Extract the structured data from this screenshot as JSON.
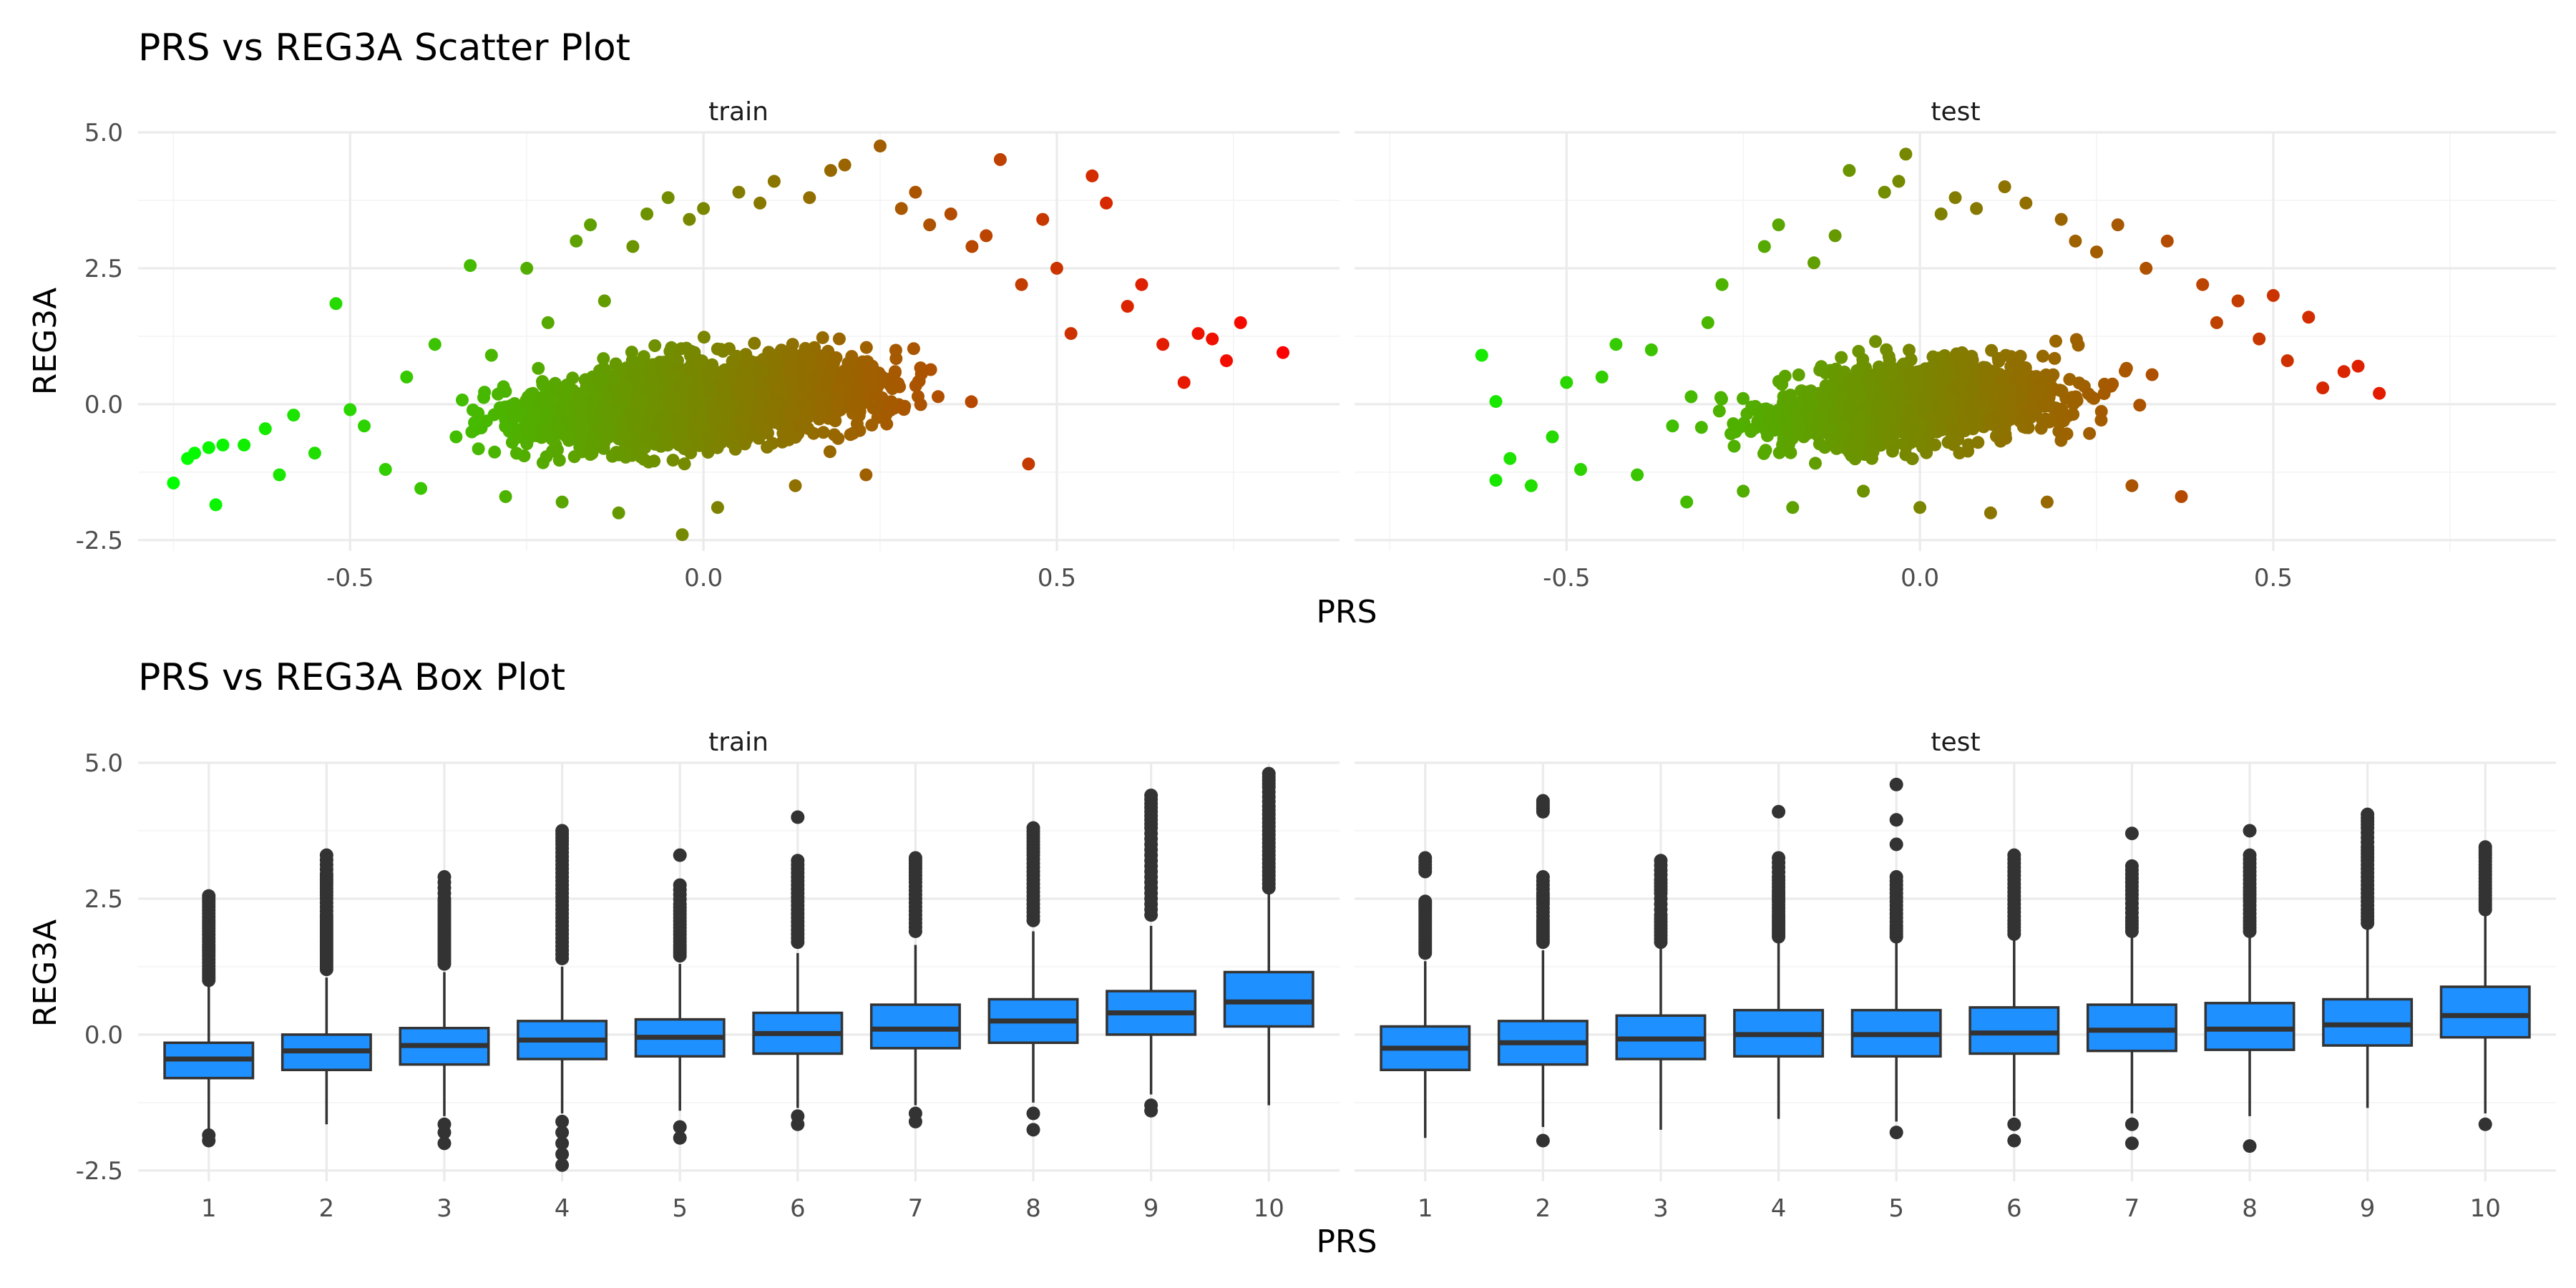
{
  "chart_data": [
    {
      "type": "scatter",
      "title": "PRS vs REG3A Scatter Plot",
      "xlabel": "PRS",
      "ylabel": "REG3A",
      "facets": [
        "train",
        "test"
      ],
      "xlim": [
        -0.8,
        0.9
      ],
      "ylim": [
        -2.7,
        5.0
      ],
      "x_ticks": [
        -0.5,
        0.0,
        0.5
      ],
      "x_tick_labels": [
        "-0.5",
        "0.0",
        "0.5"
      ],
      "y_ticks": [
        -2.5,
        0.0,
        2.5,
        5.0
      ],
      "y_tick_labels": [
        "-2.5",
        "0.0",
        "2.5",
        "5.0"
      ],
      "grid": true,
      "legend": "none",
      "color_scale": {
        "low": "#00ff00",
        "high": "#ff0000",
        "mapped_to": "PRS"
      },
      "series": [
        {
          "facet": "train",
          "points_note": "dense cloud (thousands of points); representative sample listed",
          "points": [
            [
              -0.75,
              -1.45
            ],
            [
              -0.73,
              -1.0
            ],
            [
              -0.72,
              -0.9
            ],
            [
              -0.7,
              -0.8
            ],
            [
              -0.69,
              -1.85
            ],
            [
              -0.68,
              -0.75
            ],
            [
              -0.65,
              -0.75
            ],
            [
              -0.62,
              -0.45
            ],
            [
              -0.6,
              -1.3
            ],
            [
              -0.58,
              -0.2
            ],
            [
              -0.55,
              -0.9
            ],
            [
              -0.52,
              1.85
            ],
            [
              -0.5,
              -0.1
            ],
            [
              -0.48,
              -0.4
            ],
            [
              -0.45,
              -1.2
            ],
            [
              -0.42,
              0.5
            ],
            [
              -0.4,
              -1.55
            ],
            [
              -0.38,
              1.1
            ],
            [
              -0.35,
              -0.6
            ],
            [
              -0.33,
              2.55
            ],
            [
              -0.3,
              0.9
            ],
            [
              -0.28,
              -1.7
            ],
            [
              -0.25,
              2.5
            ],
            [
              -0.22,
              1.5
            ],
            [
              -0.2,
              -1.8
            ],
            [
              -0.18,
              3.0
            ],
            [
              -0.16,
              3.3
            ],
            [
              -0.14,
              1.9
            ],
            [
              -0.12,
              -2.0
            ],
            [
              -0.1,
              2.9
            ],
            [
              -0.08,
              3.5
            ],
            [
              -0.05,
              3.8
            ],
            [
              -0.03,
              -2.4
            ],
            [
              -0.02,
              3.4
            ],
            [
              0.0,
              3.6
            ],
            [
              0.02,
              -1.9
            ],
            [
              0.05,
              3.9
            ],
            [
              0.08,
              3.7
            ],
            [
              0.1,
              4.1
            ],
            [
              0.13,
              -1.5
            ],
            [
              0.15,
              3.8
            ],
            [
              0.18,
              4.3
            ],
            [
              0.2,
              4.4
            ],
            [
              0.23,
              -1.3
            ],
            [
              0.25,
              4.75
            ],
            [
              0.28,
              3.6
            ],
            [
              0.3,
              3.9
            ],
            [
              0.32,
              3.3
            ],
            [
              0.35,
              3.5
            ],
            [
              0.38,
              2.9
            ],
            [
              0.4,
              3.1
            ],
            [
              0.42,
              4.5
            ],
            [
              0.45,
              2.2
            ],
            [
              0.46,
              -1.1
            ],
            [
              0.48,
              3.4
            ],
            [
              0.5,
              2.5
            ],
            [
              0.52,
              1.3
            ],
            [
              0.55,
              4.2
            ],
            [
              0.57,
              3.7
            ],
            [
              0.6,
              1.8
            ],
            [
              0.62,
              2.2
            ],
            [
              0.65,
              1.1
            ],
            [
              0.68,
              0.4
            ],
            [
              0.7,
              1.3
            ],
            [
              0.72,
              1.2
            ],
            [
              0.74,
              0.8
            ],
            [
              0.76,
              1.5
            ],
            [
              0.82,
              0.95
            ]
          ]
        },
        {
          "facet": "test",
          "points_note": "dense cloud (thousands of points); representative sample listed",
          "points": [
            [
              -0.62,
              0.9
            ],
            [
              -0.6,
              0.05
            ],
            [
              -0.6,
              -1.4
            ],
            [
              -0.58,
              -1.0
            ],
            [
              -0.55,
              -1.5
            ],
            [
              -0.52,
              -0.6
            ],
            [
              -0.5,
              0.4
            ],
            [
              -0.48,
              -1.2
            ],
            [
              -0.45,
              0.5
            ],
            [
              -0.43,
              1.1
            ],
            [
              -0.4,
              -1.3
            ],
            [
              -0.38,
              1.0
            ],
            [
              -0.35,
              -0.4
            ],
            [
              -0.33,
              -1.8
            ],
            [
              -0.3,
              1.5
            ],
            [
              -0.28,
              2.2
            ],
            [
              -0.25,
              -1.6
            ],
            [
              -0.22,
              2.9
            ],
            [
              -0.2,
              3.3
            ],
            [
              -0.18,
              -1.9
            ],
            [
              -0.15,
              2.6
            ],
            [
              -0.12,
              3.1
            ],
            [
              -0.1,
              4.3
            ],
            [
              -0.08,
              -1.6
            ],
            [
              -0.05,
              3.9
            ],
            [
              -0.03,
              4.1
            ],
            [
              -0.02,
              4.6
            ],
            [
              0.0,
              -1.9
            ],
            [
              0.03,
              3.5
            ],
            [
              0.05,
              3.8
            ],
            [
              0.08,
              3.6
            ],
            [
              0.1,
              -2.0
            ],
            [
              0.12,
              4.0
            ],
            [
              0.15,
              3.7
            ],
            [
              0.18,
              -1.8
            ],
            [
              0.2,
              3.4
            ],
            [
              0.22,
              3.0
            ],
            [
              0.25,
              2.8
            ],
            [
              0.28,
              3.3
            ],
            [
              0.3,
              -1.5
            ],
            [
              0.32,
              2.5
            ],
            [
              0.35,
              3.0
            ],
            [
              0.37,
              -1.7
            ],
            [
              0.4,
              2.2
            ],
            [
              0.42,
              1.5
            ],
            [
              0.45,
              1.9
            ],
            [
              0.48,
              1.2
            ],
            [
              0.5,
              2.0
            ],
            [
              0.52,
              0.8
            ],
            [
              0.55,
              1.6
            ],
            [
              0.57,
              0.3
            ],
            [
              0.6,
              0.6
            ],
            [
              0.62,
              0.7
            ],
            [
              0.65,
              0.2
            ]
          ]
        }
      ]
    },
    {
      "type": "box",
      "title": "PRS vs REG3A Box Plot",
      "xlabel": "PRS",
      "ylabel": "REG3A",
      "facets": [
        "train",
        "test"
      ],
      "categories": [
        "1",
        "2",
        "3",
        "4",
        "5",
        "6",
        "7",
        "8",
        "9",
        "10"
      ],
      "ylim": [
        -2.7,
        5.0
      ],
      "y_ticks": [
        -2.5,
        0.0,
        2.5,
        5.0
      ],
      "y_tick_labels": [
        "-2.5",
        "0.0",
        "2.5",
        "5.0"
      ],
      "fill": "#1e90ff",
      "outline": "#333333",
      "grid": true,
      "legend": "none",
      "series": [
        {
          "facet": "train",
          "boxes": [
            {
              "category": "1",
              "whisker_low": -1.75,
              "q1": -0.8,
              "median": -0.45,
              "q3": -0.15,
              "whisker_high": 0.9,
              "outliers": [
                -1.85,
                -1.95,
                1.0,
                1.2,
                1.45,
                1.65,
                1.9,
                2.1,
                2.35,
                2.55
              ]
            },
            {
              "category": "2",
              "whisker_low": -1.65,
              "q1": -0.65,
              "median": -0.3,
              "q3": 0.0,
              "whisker_high": 1.05,
              "outliers": [
                1.2,
                1.4,
                1.6,
                1.8,
                2.0,
                2.2,
                2.5,
                2.75,
                2.95,
                3.3
              ]
            },
            {
              "category": "3",
              "whisker_low": -1.5,
              "q1": -0.55,
              "median": -0.2,
              "q3": 0.12,
              "whisker_high": 1.15,
              "outliers": [
                -1.65,
                -1.8,
                -2.0,
                1.3,
                1.5,
                1.7,
                1.9,
                2.1,
                2.3,
                2.5,
                2.9
              ]
            },
            {
              "category": "4",
              "whisker_low": -1.45,
              "q1": -0.45,
              "median": -0.1,
              "q3": 0.25,
              "whisker_high": 1.25,
              "outliers": [
                -1.6,
                -1.8,
                -2.0,
                -2.2,
                -2.4,
                1.4,
                1.7,
                2.0,
                2.3,
                2.6,
                2.9,
                3.2,
                3.5,
                3.75
              ]
            },
            {
              "category": "5",
              "whisker_low": -1.4,
              "q1": -0.4,
              "median": -0.05,
              "q3": 0.28,
              "whisker_high": 1.3,
              "outliers": [
                -1.7,
                -1.9,
                1.45,
                1.65,
                1.9,
                2.15,
                2.4,
                2.75,
                3.3
              ]
            },
            {
              "category": "6",
              "whisker_low": -1.35,
              "q1": -0.35,
              "median": 0.02,
              "q3": 0.4,
              "whisker_high": 1.5,
              "outliers": [
                -1.5,
                -1.65,
                1.7,
                2.0,
                2.3,
                2.6,
                2.9,
                3.2,
                4.0
              ]
            },
            {
              "category": "7",
              "whisker_low": -1.3,
              "q1": -0.25,
              "median": 0.1,
              "q3": 0.55,
              "whisker_high": 1.65,
              "outliers": [
                -1.45,
                -1.6,
                1.9,
                2.2,
                2.5,
                2.8,
                3.05,
                3.25
              ]
            },
            {
              "category": "8",
              "whisker_low": -1.25,
              "q1": -0.15,
              "median": 0.25,
              "q3": 0.65,
              "whisker_high": 1.9,
              "outliers": [
                -1.45,
                -1.75,
                2.1,
                2.4,
                2.7,
                3.0,
                3.3,
                3.55,
                3.8
              ]
            },
            {
              "category": "9",
              "whisker_low": -1.1,
              "q1": 0.0,
              "median": 0.4,
              "q3": 0.8,
              "whisker_high": 2.0,
              "outliers": [
                -1.3,
                -1.4,
                2.2,
                2.6,
                3.0,
                3.4,
                3.8,
                4.1,
                4.4
              ]
            },
            {
              "category": "10",
              "whisker_low": -1.3,
              "q1": 0.15,
              "median": 0.6,
              "q3": 1.15,
              "whisker_high": 2.6,
              "outliers": [
                2.7,
                3.0,
                3.3,
                3.6,
                3.9,
                4.2,
                4.55,
                4.8
              ]
            }
          ]
        },
        {
          "facet": "test",
          "boxes": [
            {
              "category": "1",
              "whisker_low": -1.9,
              "q1": -0.65,
              "median": -0.25,
              "q3": 0.15,
              "whisker_high": 1.35,
              "outliers": [
                1.5,
                1.7,
                1.9,
                2.1,
                2.3,
                2.45,
                3.0,
                3.25
              ]
            },
            {
              "category": "2",
              "whisker_low": -1.7,
              "q1": -0.55,
              "median": -0.15,
              "q3": 0.25,
              "whisker_high": 1.55,
              "outliers": [
                -1.95,
                1.7,
                1.9,
                2.1,
                2.4,
                2.6,
                2.9,
                4.1,
                4.3
              ]
            },
            {
              "category": "3",
              "whisker_low": -1.75,
              "q1": -0.45,
              "median": -0.08,
              "q3": 0.35,
              "whisker_high": 1.6,
              "outliers": [
                1.7,
                1.95,
                2.2,
                2.6,
                2.85,
                3.2
              ]
            },
            {
              "category": "4",
              "whisker_low": -1.55,
              "q1": -0.4,
              "median": 0.0,
              "q3": 0.45,
              "whisker_high": 1.7,
              "outliers": [
                1.8,
                2.0,
                2.2,
                2.45,
                2.65,
                2.9,
                3.25,
                4.1
              ]
            },
            {
              "category": "5",
              "whisker_low": -1.6,
              "q1": -0.4,
              "median": 0.0,
              "q3": 0.45,
              "whisker_high": 1.7,
              "outliers": [
                -1.8,
                1.8,
                2.0,
                2.3,
                2.6,
                2.9,
                3.5,
                3.95,
                4.6
              ]
            },
            {
              "category": "6",
              "whisker_low": -1.5,
              "q1": -0.35,
              "median": 0.03,
              "q3": 0.5,
              "whisker_high": 1.75,
              "outliers": [
                -1.65,
                -1.95,
                1.85,
                2.1,
                2.4,
                2.7,
                3.0,
                3.3
              ]
            },
            {
              "category": "7",
              "whisker_low": -1.45,
              "q1": -0.3,
              "median": 0.08,
              "q3": 0.55,
              "whisker_high": 1.8,
              "outliers": [
                -1.65,
                -2.0,
                1.9,
                2.15,
                2.5,
                2.8,
                3.1,
                3.7
              ]
            },
            {
              "category": "8",
              "whisker_low": -1.5,
              "q1": -0.28,
              "median": 0.1,
              "q3": 0.58,
              "whisker_high": 1.8,
              "outliers": [
                -2.05,
                1.9,
                2.15,
                2.45,
                2.7,
                3.0,
                3.3,
                3.75
              ]
            },
            {
              "category": "9",
              "whisker_low": -1.35,
              "q1": -0.2,
              "median": 0.18,
              "q3": 0.65,
              "whisker_high": 1.95,
              "outliers": [
                2.05,
                2.3,
                2.6,
                2.9,
                3.2,
                3.45,
                3.8,
                4.05
              ]
            },
            {
              "category": "10",
              "whisker_low": -1.45,
              "q1": -0.05,
              "median": 0.35,
              "q3": 0.88,
              "whisker_high": 2.2,
              "outliers": [
                -1.65,
                2.3,
                2.5,
                2.75,
                3.0,
                3.25,
                3.45
              ]
            }
          ]
        }
      ]
    }
  ]
}
